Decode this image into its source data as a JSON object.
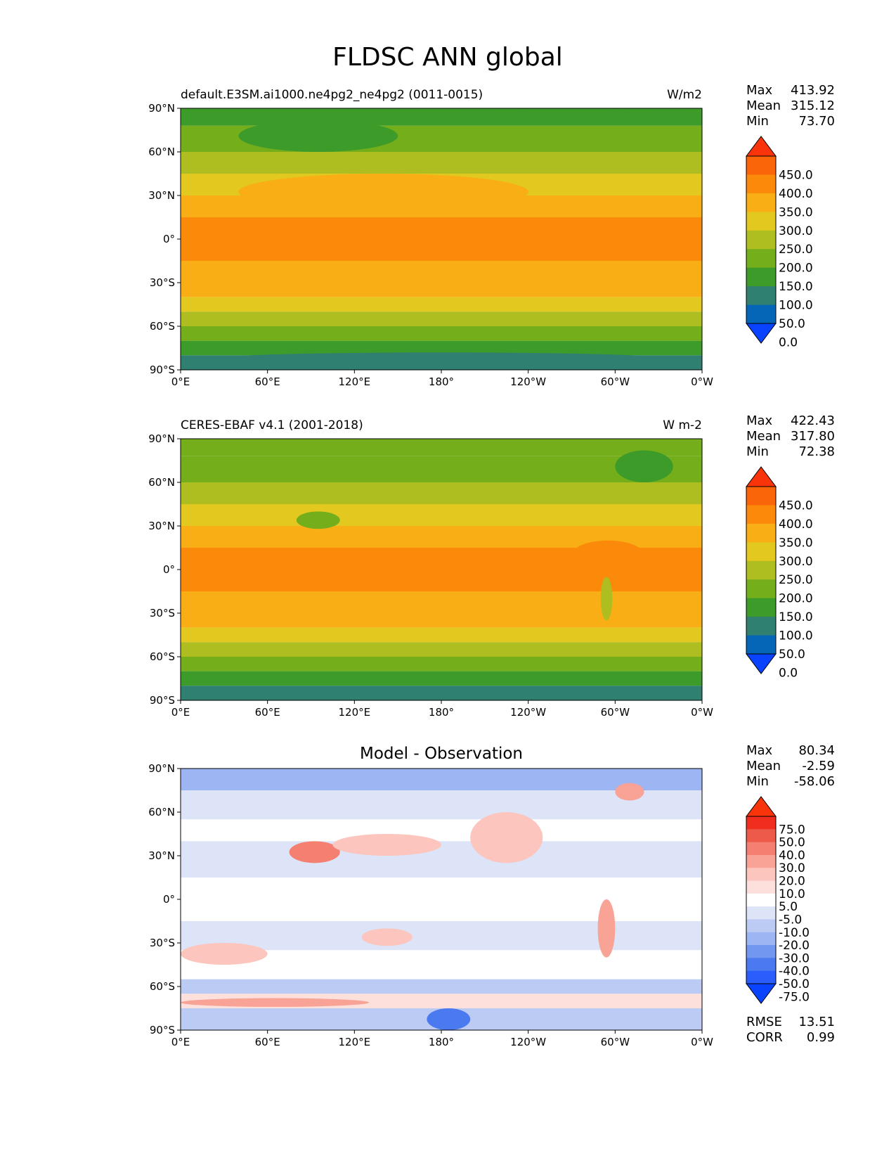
{
  "title": "FLDSC ANN global",
  "colors": {
    "top": [
      "#0a43ff",
      "#0566b7",
      "#2f8070",
      "#3d9b2a",
      "#74ae1b",
      "#aebd1f",
      "#e3c820",
      "#f8ae14",
      "#fb8a0b",
      "#fb650a",
      "#f9340b"
    ],
    "diff": [
      "#0a43ff",
      "#2a5dfb",
      "#4a79f0",
      "#7297f0",
      "#9db5f2",
      "#bccbf4",
      "#dde4f8",
      "#ffffff",
      "#fde0dc",
      "#fcc5bd",
      "#f9a296",
      "#f58072",
      "#ed5a4a",
      "#f02d1f",
      "#f9340b"
    ]
  },
  "chart_data": [
    {
      "type": "heatmap",
      "title": "default.E3SM.ai1000.ne4pg2_ne4pg2 (0011-0015)",
      "units": "W/m2",
      "xticks": [
        "0°E",
        "60°E",
        "120°E",
        "180°",
        "120°W",
        "60°W",
        "0°W"
      ],
      "yticks": [
        "90°N",
        "60°N",
        "30°N",
        "0°",
        "30°S",
        "60°S",
        "90°S"
      ],
      "stats": {
        "max_label": "Max",
        "max": "413.92",
        "mean_label": "Mean",
        "mean": "315.12",
        "min_label": "Min",
        "min": "73.70"
      },
      "colorbar": {
        "levels": [
          "450.0",
          "400.0",
          "350.0",
          "300.0",
          "250.0",
          "200.0",
          "150.0",
          "100.0",
          "50.0",
          "0.0"
        ]
      },
      "bands": [
        {
          "lat": [
            90,
            78
          ],
          "value": 140
        },
        {
          "lat": [
            78,
            60
          ],
          "value": 160
        },
        {
          "lat": [
            60,
            45
          ],
          "value": 200
        },
        {
          "lat": [
            45,
            30
          ],
          "value": 270
        },
        {
          "lat": [
            30,
            15
          ],
          "value": 320
        },
        {
          "lat": [
            15,
            -15
          ],
          "value": 360
        },
        {
          "lat": [
            -15,
            -30
          ],
          "value": 330
        },
        {
          "lat": [
            -30,
            -40
          ],
          "value": 300
        },
        {
          "lat": [
            -40,
            -50
          ],
          "value": 260
        },
        {
          "lat": [
            -50,
            -60
          ],
          "value": 200
        },
        {
          "lat": [
            -60,
            -70
          ],
          "value": 160
        },
        {
          "lat": [
            -70,
            -80
          ],
          "value": 130
        },
        {
          "lat": [
            -80,
            -90
          ],
          "value": 90
        }
      ],
      "patches": [
        {
          "lon": [
            190,
            350
          ],
          "lat": [
            90,
            82
          ],
          "value": 110
        },
        {
          "lon": [
            40,
            150
          ],
          "lat": [
            82,
            60
          ],
          "value": 140
        },
        {
          "lon": [
            40,
            240
          ],
          "lat": [
            45,
            20
          ],
          "value": 330
        },
        {
          "lon": [
            60,
            230
          ],
          "lat": [
            12,
            -12
          ],
          "value": 380
        },
        {
          "lon": [
            0,
            360
          ],
          "lat": [
            -78,
            -90
          ],
          "value": 80
        }
      ]
    },
    {
      "type": "heatmap",
      "title": "CERES-EBAF v4.1 (2001-2018)",
      "units": "W m-2",
      "xticks": [
        "0°E",
        "60°E",
        "120°E",
        "180°",
        "120°W",
        "60°W",
        "0°W"
      ],
      "yticks": [
        "90°N",
        "60°N",
        "30°N",
        "0°",
        "30°S",
        "60°S",
        "90°S"
      ],
      "stats": {
        "max_label": "Max",
        "max": "422.43",
        "mean_label": "Mean",
        "mean": "317.80",
        "min_label": "Min",
        "min": "72.38"
      },
      "colorbar": {
        "levels": [
          "450.0",
          "400.0",
          "350.0",
          "300.0",
          "250.0",
          "200.0",
          "150.0",
          "100.0",
          "50.0",
          "0.0"
        ]
      },
      "bands": [
        {
          "lat": [
            90,
            78
          ],
          "value": 160
        },
        {
          "lat": [
            78,
            60
          ],
          "value": 170
        },
        {
          "lat": [
            60,
            45
          ],
          "value": 220
        },
        {
          "lat": [
            45,
            30
          ],
          "value": 270
        },
        {
          "lat": [
            30,
            15
          ],
          "value": 330
        },
        {
          "lat": [
            15,
            -15
          ],
          "value": 360
        },
        {
          "lat": [
            -15,
            -30
          ],
          "value": 330
        },
        {
          "lat": [
            -30,
            -40
          ],
          "value": 300
        },
        {
          "lat": [
            -40,
            -50
          ],
          "value": 270
        },
        {
          "lat": [
            -50,
            -60
          ],
          "value": 210
        },
        {
          "lat": [
            -60,
            -70
          ],
          "value": 160
        },
        {
          "lat": [
            -70,
            -80
          ],
          "value": 110
        },
        {
          "lat": [
            -80,
            -90
          ],
          "value": 90
        }
      ],
      "patches": [
        {
          "lon": [
            300,
            340
          ],
          "lat": [
            82,
            60
          ],
          "value": 130
        },
        {
          "lon": [
            80,
            110
          ],
          "lat": [
            40,
            28
          ],
          "value": 190
        },
        {
          "lon": [
            290,
            298
          ],
          "lat": [
            -5,
            -35
          ],
          "value": 230
        },
        {
          "lon": [
            50,
            220
          ],
          "lat": [
            12,
            -12
          ],
          "value": 380
        },
        {
          "lon": [
            270,
            320
          ],
          "lat": [
            20,
            0
          ],
          "value": 380
        }
      ]
    },
    {
      "type": "heatmap",
      "title": "Model - Observation",
      "units": "",
      "xticks": [
        "0°E",
        "60°E",
        "120°E",
        "180°",
        "120°W",
        "60°W",
        "0°W"
      ],
      "yticks": [
        "90°N",
        "60°N",
        "30°N",
        "0°",
        "30°S",
        "60°S",
        "90°S"
      ],
      "stats": {
        "max_label": "Max",
        "max": "80.34",
        "mean_label": "Mean",
        "mean": "-2.59",
        "min_label": "Min",
        "min": "-58.06"
      },
      "metrics": {
        "rmse_label": "RMSE",
        "rmse": "13.51",
        "corr_label": "CORR",
        "corr": "0.99"
      },
      "colorbar": {
        "levels": [
          "75.0",
          "50.0",
          "40.0",
          "30.0",
          "20.0",
          "10.0",
          "5.0",
          "-5.0",
          "-10.0",
          "-20.0",
          "-30.0",
          "-40.0",
          "-50.0",
          "-75.0"
        ]
      },
      "bands": [
        {
          "lat": [
            90,
            75
          ],
          "value": -25
        },
        {
          "lat": [
            75,
            55
          ],
          "value": -8
        },
        {
          "lat": [
            55,
            40
          ],
          "value": 0
        },
        {
          "lat": [
            40,
            15
          ],
          "value": -8
        },
        {
          "lat": [
            15,
            -15
          ],
          "value": 0
        },
        {
          "lat": [
            -15,
            -35
          ],
          "value": -8
        },
        {
          "lat": [
            -35,
            -55
          ],
          "value": 0
        },
        {
          "lat": [
            -55,
            -65
          ],
          "value": -15
        },
        {
          "lat": [
            -65,
            -75
          ],
          "value": 8
        },
        {
          "lat": [
            -75,
            -90
          ],
          "value": -15
        }
      ],
      "patches": [
        {
          "lon": [
            75,
            110
          ],
          "lat": [
            40,
            25
          ],
          "value": 30
        },
        {
          "lon": [
            105,
            180
          ],
          "lat": [
            45,
            30
          ],
          "value": 12
        },
        {
          "lon": [
            200,
            250
          ],
          "lat": [
            60,
            25
          ],
          "value": 15
        },
        {
          "lon": [
            288,
            300
          ],
          "lat": [
            0,
            -40
          ],
          "value": 25
        },
        {
          "lon": [
            300,
            320
          ],
          "lat": [
            80,
            68
          ],
          "value": 25
        },
        {
          "lon": [
            0,
            60
          ],
          "lat": [
            -30,
            -45
          ],
          "value": 12
        },
        {
          "lon": [
            170,
            200
          ],
          "lat": [
            -75,
            -90
          ],
          "value": -45
        },
        {
          "lon": [
            125,
            160
          ],
          "lat": [
            -20,
            -32
          ],
          "value": 15
        },
        {
          "lon": [
            0,
            130
          ],
          "lat": [
            -68,
            -74
          ],
          "value": 25
        }
      ]
    }
  ]
}
